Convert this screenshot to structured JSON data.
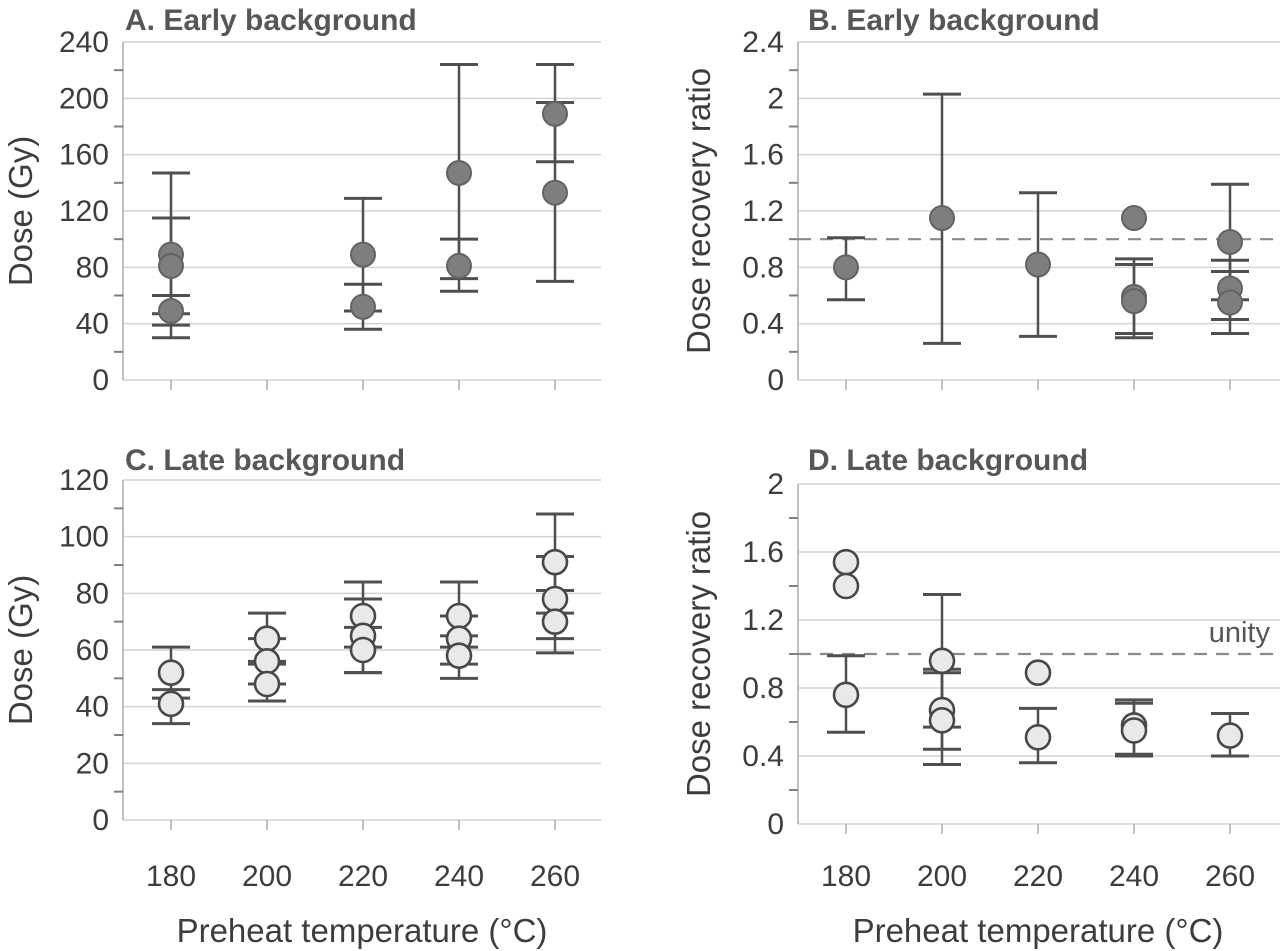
{
  "figure": {
    "background": "#ffffff",
    "x_axis_title": "Preheat temperature (°C)",
    "unity_label": "unity",
    "colors": {
      "gridline": "#d4d4d4",
      "spine": "#b0b0b0",
      "minor_tick": "#7f7f7f",
      "x_tick": "#b0b0b0",
      "error_bar": "#4f4f4f",
      "dark_marker_fill": "#7e7e7e",
      "dark_marker_stroke": "#636363",
      "light_marker_fill": "#e9e9e9",
      "light_marker_stroke": "#484848",
      "dashed_line": "#8a8a8a",
      "tick_text": "#3d3d3d",
      "title_text": "#575757"
    }
  },
  "chart_data": [
    {
      "id": "A",
      "type": "scatter",
      "title": "A. Early background",
      "ylabel": "Dose (Gy)",
      "xlabel": "",
      "marker_style": "dark",
      "ylim": [
        0,
        240
      ],
      "yticks": [
        0,
        40,
        80,
        120,
        160,
        200,
        240
      ],
      "ytick_labels": [
        "0",
        "40",
        "80",
        "120",
        "160",
        "200",
        "240"
      ],
      "x_categories": [
        180,
        200,
        220,
        240,
        260
      ],
      "show_x_tick_labels": false,
      "unity_line": false,
      "grid": true,
      "groups": [
        {
          "x": 180,
          "points": [
            {
              "y": 89,
              "lo": 30,
              "hi": 147
            },
            {
              "y": 81,
              "lo": 47,
              "hi": 115
            },
            {
              "y": 49,
              "lo": 39,
              "hi": 60
            }
          ]
        },
        {
          "x": 200,
          "points": []
        },
        {
          "x": 220,
          "points": [
            {
              "y": 89,
              "lo": 49,
              "hi": 129
            },
            {
              "y": 52,
              "lo": 36,
              "hi": 68
            }
          ]
        },
        {
          "x": 240,
          "points": [
            {
              "y": 147,
              "lo": 72,
              "hi": 224
            },
            {
              "y": 81,
              "lo": 63,
              "hi": 100
            }
          ]
        },
        {
          "x": 260,
          "points": [
            {
              "y": 189,
              "lo": 155,
              "hi": 224
            },
            {
              "y": 133,
              "lo": 70,
              "hi": 197
            }
          ]
        }
      ]
    },
    {
      "id": "B",
      "type": "scatter",
      "title": "B. Early background",
      "ylabel": "Dose recovery ratio",
      "xlabel": "",
      "marker_style": "dark",
      "ylim": [
        0,
        2.4
      ],
      "yticks": [
        0,
        0.4,
        0.8,
        1.2,
        1.6,
        2,
        2.4
      ],
      "ytick_labels": [
        "0",
        "0.4",
        "0.8",
        "1.2",
        "1.6",
        "2",
        "2.4"
      ],
      "x_categories": [
        180,
        200,
        220,
        240,
        260
      ],
      "show_x_tick_labels": false,
      "unity_line": true,
      "unity_value": 1.0,
      "grid": true,
      "groups": [
        {
          "x": 180,
          "points": [
            {
              "y": 0.8,
              "lo": 0.57,
              "hi": 1.01
            }
          ]
        },
        {
          "x": 200,
          "points": [
            {
              "y": 1.15,
              "lo": 0.26,
              "hi": 2.03
            }
          ]
        },
        {
          "x": 220,
          "points": [
            {
              "y": 0.82,
              "lo": 0.31,
              "hi": 1.33
            }
          ]
        },
        {
          "x": 240,
          "points": [
            {
              "y": 1.15
            },
            {
              "y": 0.59,
              "lo": 0.33,
              "hi": 0.86
            },
            {
              "y": 0.56,
              "lo": 0.3,
              "hi": 0.82
            }
          ]
        },
        {
          "x": 260,
          "points": [
            {
              "y": 0.98,
              "lo": 0.57,
              "hi": 1.39
            },
            {
              "y": 0.65,
              "lo": 0.43,
              "hi": 0.85
            },
            {
              "y": 0.55,
              "lo": 0.33,
              "hi": 0.77
            }
          ]
        }
      ]
    },
    {
      "id": "C",
      "type": "scatter",
      "title": "C. Late background",
      "ylabel": "Dose (Gy)",
      "xlabel": "Preheat temperature (°C)",
      "marker_style": "light",
      "ylim": [
        0,
        120
      ],
      "yticks": [
        0,
        20,
        40,
        60,
        80,
        100,
        120
      ],
      "ytick_labels": [
        "0",
        "20",
        "40",
        "60",
        "80",
        "100",
        "120"
      ],
      "x_categories": [
        180,
        200,
        220,
        240,
        260
      ],
      "xtick_labels": [
        "180",
        "200",
        "220",
        "240",
        "260"
      ],
      "show_x_tick_labels": true,
      "unity_line": false,
      "grid": true,
      "groups": [
        {
          "x": 180,
          "points": [
            {
              "y": 52,
              "lo": 43,
              "hi": 61
            },
            {
              "y": 41,
              "lo": 34,
              "hi": 46
            }
          ]
        },
        {
          "x": 200,
          "points": [
            {
              "y": 64,
              "lo": 56,
              "hi": 73
            },
            {
              "y": 56,
              "lo": 48,
              "hi": 64
            },
            {
              "y": 48,
              "lo": 42,
              "hi": 55
            }
          ]
        },
        {
          "x": 220,
          "points": [
            {
              "y": 72,
              "lo": 61,
              "hi": 84
            },
            {
              "y": 65,
              "lo": 52,
              "hi": 78
            },
            {
              "y": 60,
              "lo": 52,
              "hi": 68
            }
          ]
        },
        {
          "x": 240,
          "points": [
            {
              "y": 72,
              "lo": 61,
              "hi": 84
            },
            {
              "y": 64,
              "lo": 55,
              "hi": 72
            },
            {
              "y": 58,
              "lo": 50,
              "hi": 65
            }
          ]
        },
        {
          "x": 260,
          "points": [
            {
              "y": 91,
              "lo": 73,
              "hi": 108
            },
            {
              "y": 78,
              "lo": 64,
              "hi": 93
            },
            {
              "y": 70,
              "lo": 59,
              "hi": 81
            }
          ]
        }
      ]
    },
    {
      "id": "D",
      "type": "scatter",
      "title": "D. Late background",
      "ylabel": "Dose recovery ratio",
      "xlabel": "Preheat temperature (°C)",
      "marker_style": "light",
      "ylim": [
        0,
        2
      ],
      "yticks": [
        0,
        0.4,
        0.8,
        1.2,
        1.6,
        2
      ],
      "ytick_labels": [
        "0",
        "0.4",
        "0.8",
        "1.2",
        "1.6",
        "2"
      ],
      "x_categories": [
        180,
        200,
        220,
        240,
        260
      ],
      "xtick_labels": [
        "180",
        "200",
        "220",
        "240",
        "260"
      ],
      "show_x_tick_labels": true,
      "unity_line": true,
      "unity_value": 1.0,
      "unity_label": "unity",
      "grid": true,
      "groups": [
        {
          "x": 180,
          "points": [
            {
              "y": 1.54
            },
            {
              "y": 1.4
            },
            {
              "y": 0.76,
              "lo": 0.54,
              "hi": 0.99
            }
          ]
        },
        {
          "x": 200,
          "points": [
            {
              "y": 0.96,
              "lo": 0.57,
              "hi": 1.35
            },
            {
              "y": 0.67,
              "lo": 0.44,
              "hi": 0.91
            },
            {
              "y": 0.61,
              "lo": 0.35,
              "hi": 0.89
            }
          ]
        },
        {
          "x": 220,
          "points": [
            {
              "y": 0.89
            },
            {
              "y": 0.51,
              "lo": 0.36,
              "hi": 0.68
            }
          ]
        },
        {
          "x": 240,
          "points": [
            {
              "y": 0.58,
              "lo": 0.41,
              "hi": 0.73
            },
            {
              "y": 0.55,
              "lo": 0.4,
              "hi": 0.71
            }
          ]
        },
        {
          "x": 260,
          "points": [
            {
              "y": 0.52,
              "lo": 0.4,
              "hi": 0.65
            }
          ]
        }
      ]
    }
  ]
}
